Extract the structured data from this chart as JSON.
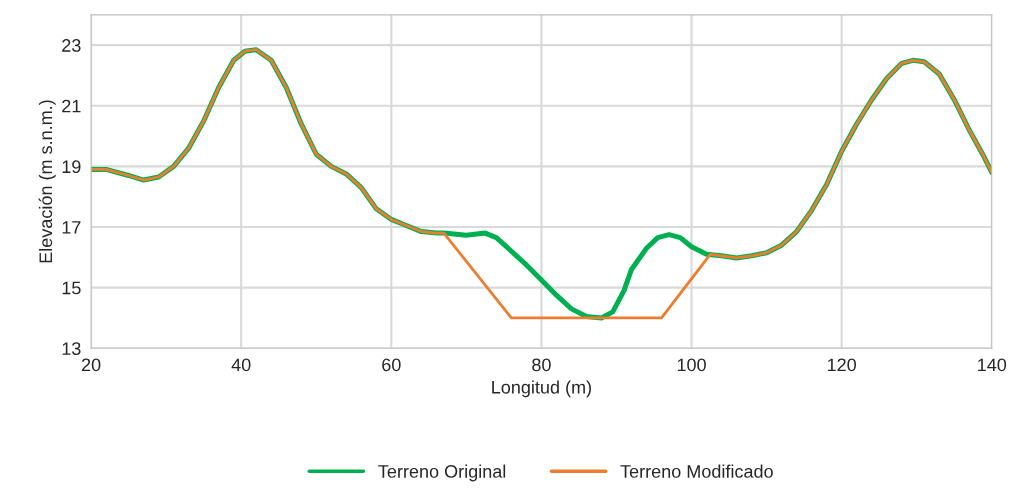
{
  "chart_data": {
    "type": "line",
    "xlabel": "Longitud (m)",
    "ylabel": "Elevación (m s.n.m.)",
    "xlim": [
      20,
      140
    ],
    "xticks": [
      20,
      40,
      60,
      80,
      100,
      120,
      140
    ],
    "ylim": [
      13,
      24
    ],
    "yticks": [
      13,
      15,
      17,
      19,
      21,
      23
    ],
    "grid": true,
    "legend": "bottom",
    "marker": "none",
    "line_style": "solid",
    "series": [
      {
        "name": "Terreno Original",
        "color": "#00b050",
        "x": [
          20,
          22,
          25,
          27,
          29,
          31,
          33,
          35,
          37,
          39,
          40.5,
          42,
          44,
          46,
          48,
          50,
          52,
          54,
          56,
          58,
          60,
          62,
          64,
          66,
          67,
          70,
          72.5,
          74,
          76,
          78,
          80,
          82,
          84,
          86,
          88,
          89.5,
          91,
          92,
          94,
          95.5,
          97,
          98.5,
          100,
          102,
          104,
          106,
          108,
          110,
          112,
          114,
          116,
          118,
          120,
          122,
          124,
          126,
          128,
          129.5,
          131,
          133,
          135,
          137,
          139,
          140
        ],
        "values": [
          18.9,
          18.9,
          18.7,
          18.55,
          18.65,
          19.0,
          19.6,
          20.5,
          21.6,
          22.5,
          22.8,
          22.85,
          22.5,
          21.6,
          20.4,
          19.4,
          19.0,
          18.75,
          18.3,
          17.6,
          17.25,
          17.05,
          16.85,
          16.8,
          16.8,
          16.73,
          16.8,
          16.65,
          16.2,
          15.75,
          15.25,
          14.75,
          14.3,
          14.05,
          14.0,
          14.2,
          14.9,
          15.6,
          16.3,
          16.65,
          16.75,
          16.65,
          16.35,
          16.1,
          16.05,
          15.98,
          16.05,
          16.15,
          16.4,
          16.85,
          17.55,
          18.4,
          19.5,
          20.4,
          21.2,
          21.9,
          22.4,
          22.5,
          22.45,
          22.05,
          21.2,
          20.2,
          19.3,
          18.8
        ]
      },
      {
        "name": "Terreno Modificado",
        "color": "#ed7d31",
        "x": [
          20,
          22,
          25,
          27,
          29,
          31,
          33,
          35,
          37,
          39,
          40.5,
          42,
          44,
          46,
          48,
          50,
          52,
          54,
          56,
          58,
          60,
          62,
          64,
          66,
          67,
          76,
          96,
          102.5,
          104,
          106,
          108,
          110,
          112,
          114,
          116,
          118,
          120,
          122,
          124,
          126,
          128,
          129.5,
          131,
          133,
          135,
          137,
          139,
          140
        ],
        "values": [
          18.9,
          18.9,
          18.7,
          18.55,
          18.65,
          19.0,
          19.6,
          20.5,
          21.6,
          22.5,
          22.8,
          22.85,
          22.5,
          21.6,
          20.4,
          19.4,
          19.0,
          18.75,
          18.3,
          17.6,
          17.25,
          17.05,
          16.85,
          16.8,
          16.8,
          14.0,
          14.0,
          16.1,
          16.05,
          15.98,
          16.05,
          16.15,
          16.4,
          16.85,
          17.55,
          18.4,
          19.5,
          20.4,
          21.2,
          21.9,
          22.4,
          22.5,
          22.45,
          22.05,
          21.2,
          20.2,
          19.3,
          18.8
        ]
      }
    ]
  }
}
